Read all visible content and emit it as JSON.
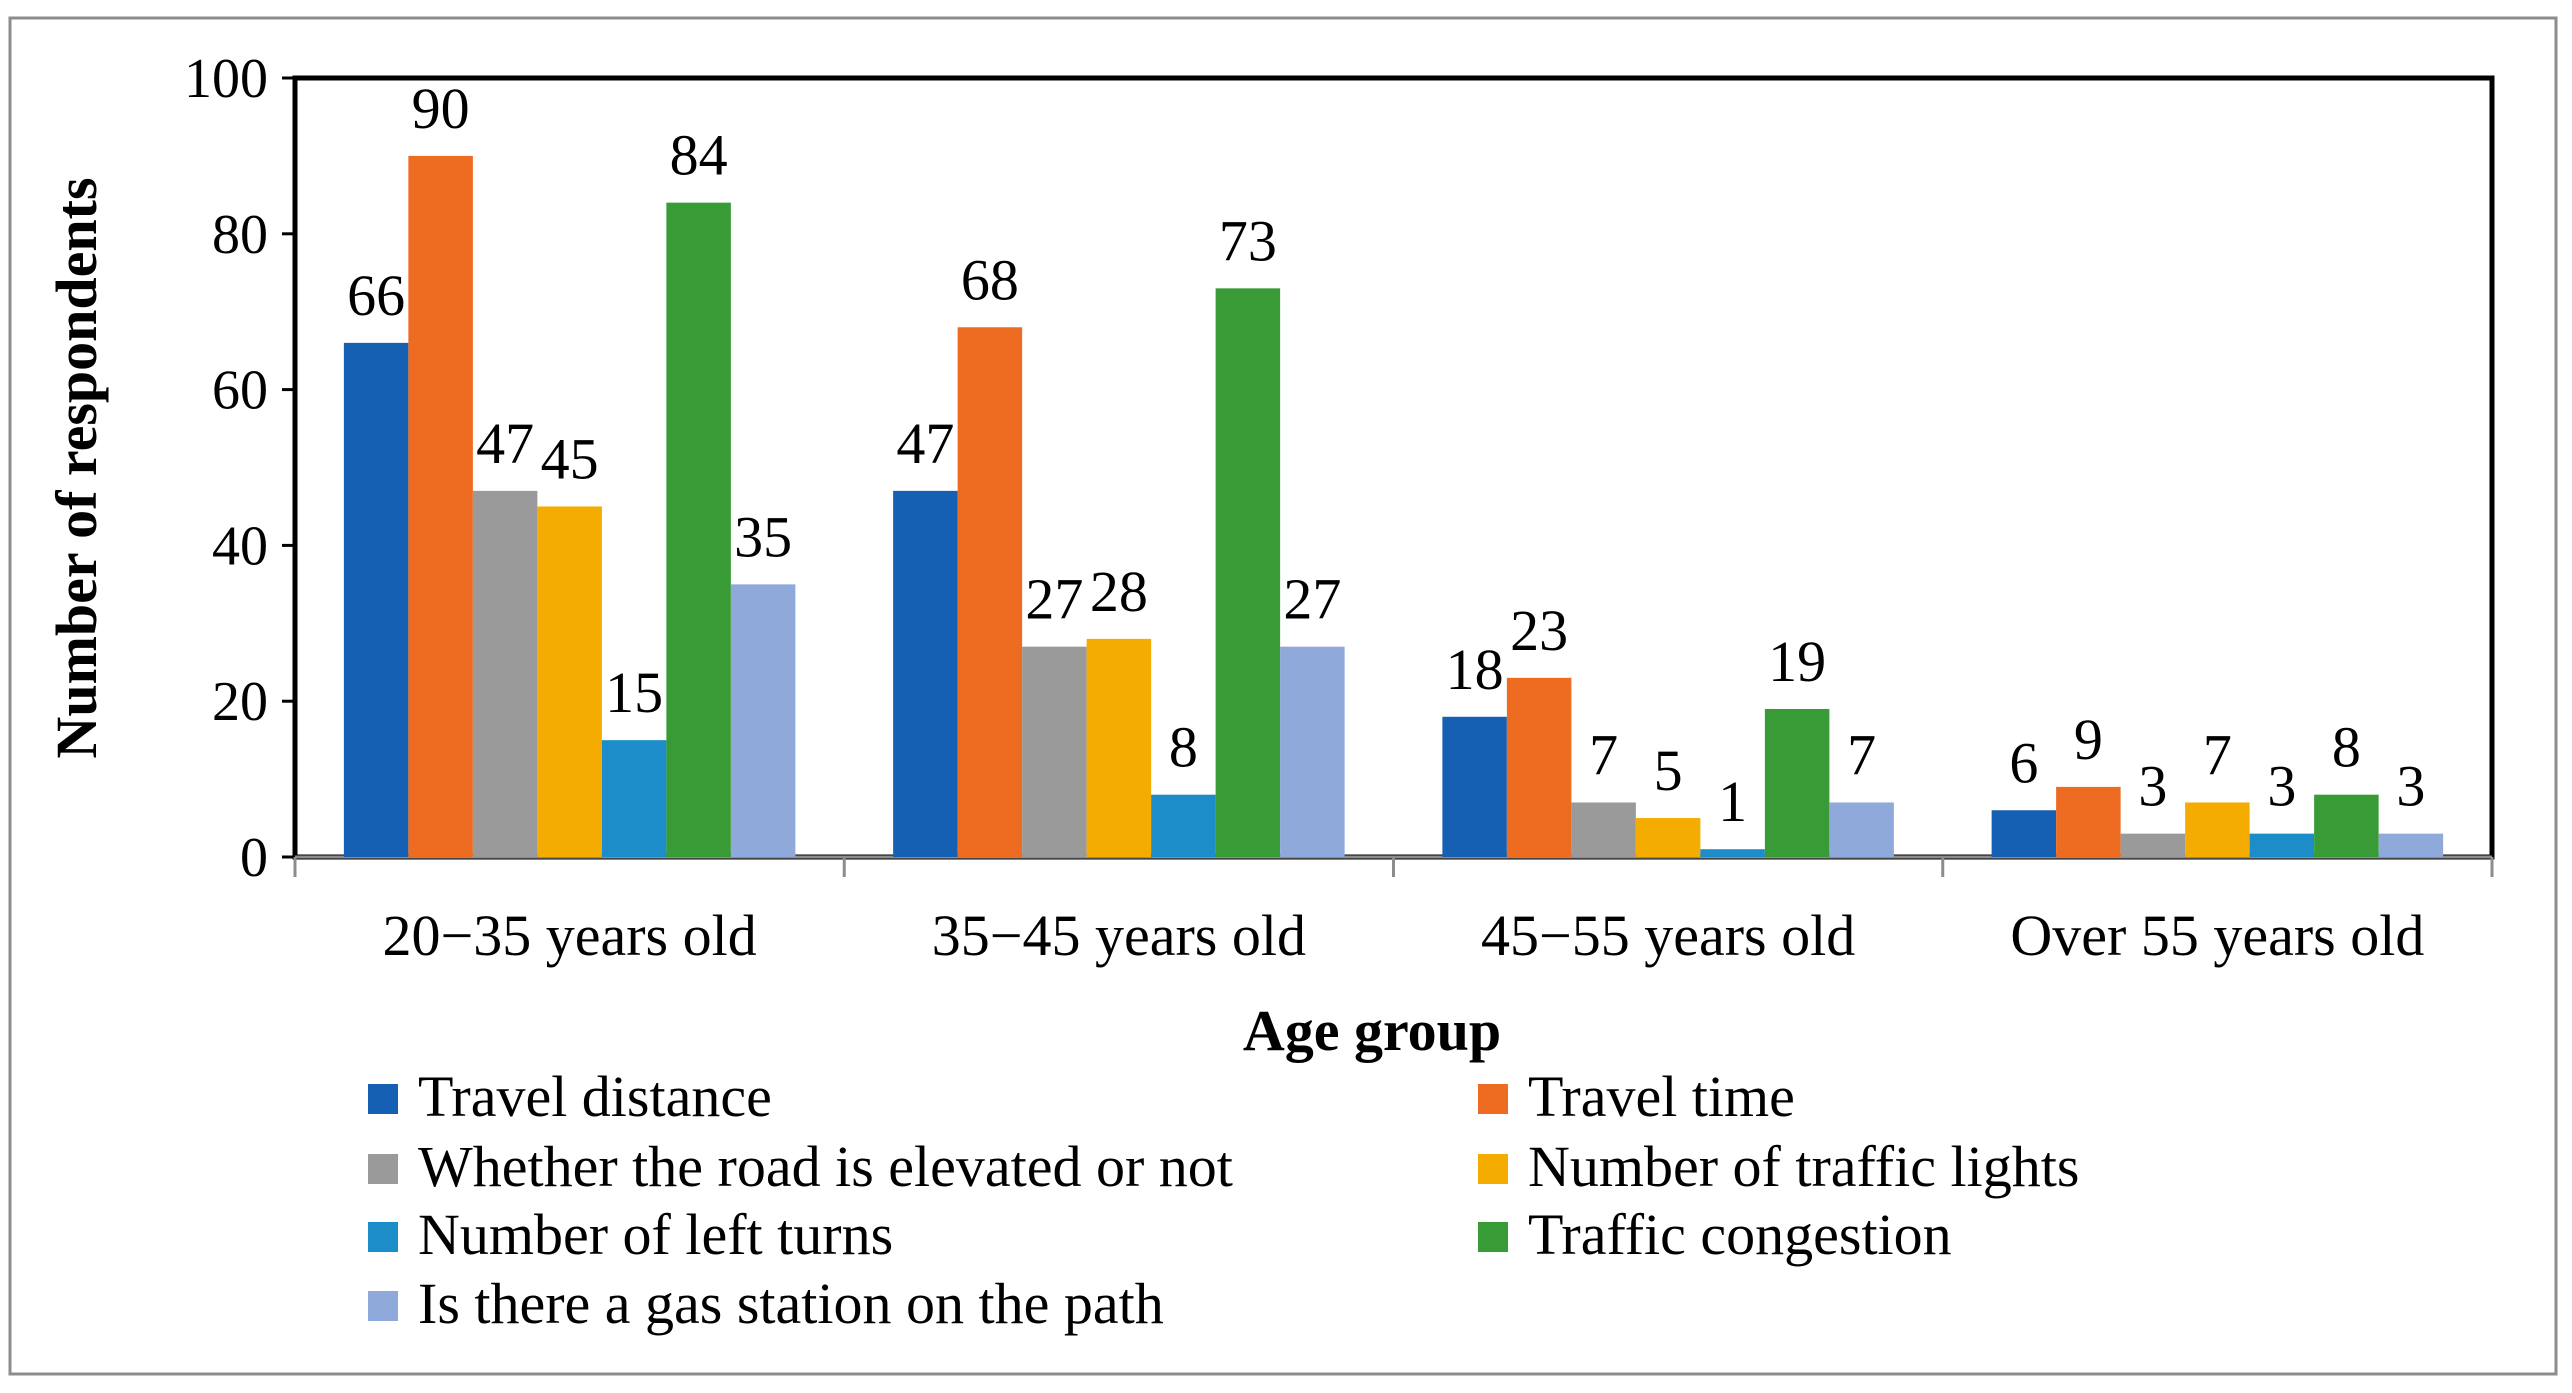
{
  "chart_data": {
    "type": "bar",
    "title": "",
    "xlabel": "Age group",
    "ylabel": "Number of respondents",
    "ylim": [
      0,
      100
    ],
    "yticks": [
      0,
      20,
      40,
      60,
      80,
      100
    ],
    "categories": [
      "20−35 years old",
      "35−45 years old",
      "45−55 years old",
      "Over 55 years old"
    ],
    "series": [
      {
        "name": "Travel distance",
        "color": "#1560B3",
        "values": [
          66,
          47,
          18,
          6
        ]
      },
      {
        "name": "Travel time",
        "color": "#EE6B22",
        "values": [
          90,
          68,
          23,
          9
        ]
      },
      {
        "name": "Whether the road is elevated or not",
        "color": "#9A9A9A",
        "values": [
          47,
          27,
          7,
          3
        ]
      },
      {
        "name": "Number of traffic lights",
        "color": "#F5AC00",
        "values": [
          45,
          28,
          5,
          7
        ]
      },
      {
        "name": "Number of left turns",
        "color": "#1C8DC8",
        "values": [
          15,
          8,
          1,
          3
        ]
      },
      {
        "name": "Traffic congestion",
        "color": "#389B35",
        "values": [
          84,
          73,
          19,
          8
        ]
      },
      {
        "name": "Is there a gas station on the path",
        "color": "#8FA9DB",
        "values": [
          35,
          27,
          7,
          3
        ]
      }
    ],
    "legend_position": "bottom",
    "grid": false
  }
}
